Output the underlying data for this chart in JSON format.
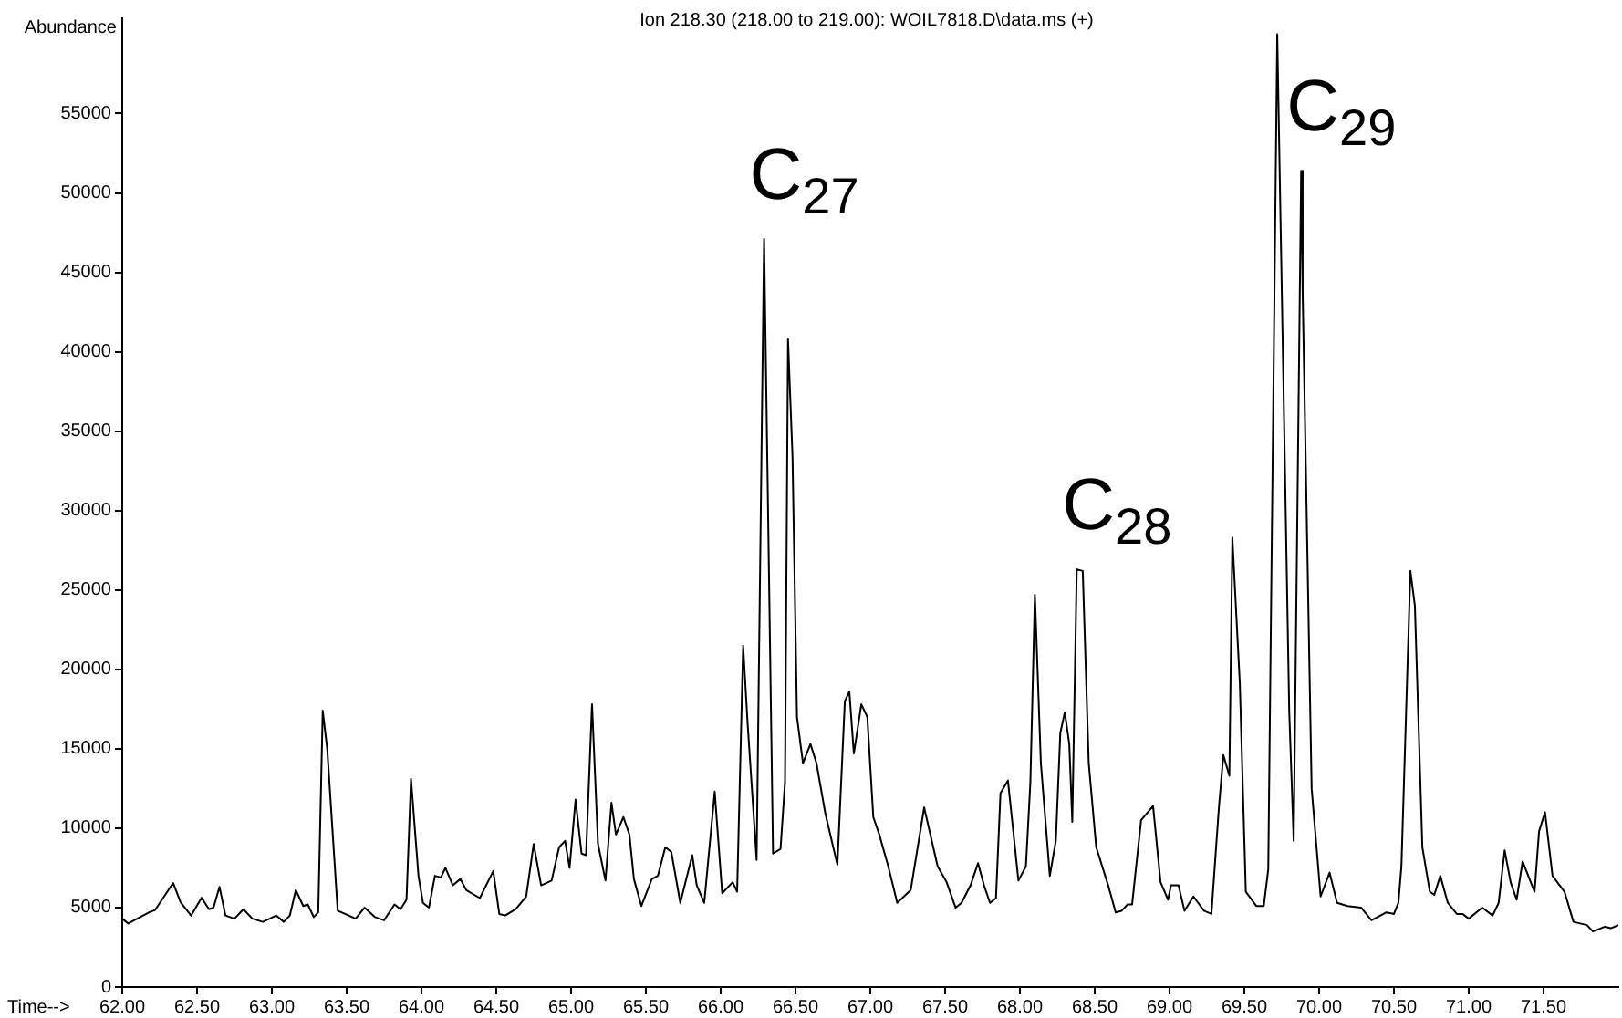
{
  "chart_data": {
    "type": "line",
    "title": "Ion 218.30 (218.00 to 219.00): WOIL7818.D\\data.ms (+)",
    "xlabel": "Time-->",
    "ylabel": "Abundance",
    "x": [
      62.0,
      62.04,
      62.18,
      62.22,
      62.34,
      62.39,
      62.46,
      62.53,
      62.58,
      62.61,
      62.65,
      62.69,
      62.75,
      62.81,
      62.87,
      62.94,
      63.03,
      63.08,
      63.12,
      63.16,
      63.21,
      63.24,
      63.28,
      63.31,
      63.34,
      63.37,
      63.44,
      63.49,
      63.56,
      63.62,
      63.69,
      63.75,
      63.82,
      63.86,
      63.9,
      63.93,
      63.98,
      64.01,
      64.05,
      64.09,
      64.13,
      64.16,
      64.21,
      64.26,
      64.3,
      64.39,
      64.48,
      64.52,
      64.56,
      64.63,
      64.7,
      64.75,
      64.8,
      64.87,
      64.92,
      64.96,
      64.99,
      65.03,
      65.07,
      65.1,
      65.14,
      65.18,
      65.23,
      65.27,
      65.3,
      65.35,
      65.39,
      65.42,
      65.47,
      65.54,
      65.58,
      65.63,
      65.67,
      65.73,
      65.81,
      65.84,
      65.89,
      65.96,
      66.01,
      66.08,
      66.11,
      66.15,
      66.18,
      66.24,
      66.29,
      66.35,
      66.4,
      66.43,
      66.45,
      66.48,
      66.51,
      66.55,
      66.6,
      66.64,
      66.7,
      66.78,
      66.83,
      66.86,
      66.89,
      66.94,
      66.98,
      67.02,
      67.06,
      67.12,
      67.18,
      67.27,
      67.36,
      67.45,
      67.51,
      67.57,
      67.61,
      67.67,
      67.72,
      67.76,
      67.8,
      67.84,
      67.87,
      67.92,
      67.99,
      68.04,
      68.07,
      68.1,
      68.14,
      68.2,
      68.24,
      68.27,
      68.3,
      68.33,
      68.35,
      68.38,
      68.42,
      68.46,
      68.51,
      68.59,
      68.64,
      68.68,
      68.72,
      68.75,
      68.81,
      68.89,
      68.94,
      68.99,
      69.01,
      69.06,
      69.1,
      69.16,
      69.23,
      69.28,
      69.33,
      69.36,
      69.4,
      69.42,
      69.47,
      69.51,
      69.58,
      69.63,
      69.66,
      69.72,
      69.77,
      69.8,
      69.83,
      69.88,
      69.89,
      69.95,
      70.01,
      70.07,
      70.12,
      70.19,
      70.28,
      70.35,
      70.45,
      70.5,
      70.53,
      70.55,
      70.61,
      70.64,
      70.69,
      70.74,
      70.77,
      70.81,
      70.86,
      70.92,
      70.96,
      71.0,
      71.09,
      71.16,
      71.2,
      71.24,
      71.28,
      71.32,
      71.36,
      71.44,
      71.47,
      71.51,
      71.56,
      71.64,
      71.7,
      71.79,
      71.83,
      71.91,
      71.95,
      72.0
    ],
    "values": [
      4300,
      4000,
      4700,
      4850,
      6550,
      5330,
      4500,
      5620,
      4900,
      5000,
      6300,
      4500,
      4300,
      4900,
      4300,
      4100,
      4500,
      4100,
      4500,
      6100,
      5100,
      5200,
      4400,
      4700,
      17400,
      15000,
      4800,
      4600,
      4300,
      5000,
      4400,
      4200,
      5200,
      4900,
      5500,
      13100,
      7000,
      5300,
      5000,
      7000,
      6900,
      7500,
      6400,
      6800,
      6100,
      5600,
      7300,
      4600,
      4500,
      4900,
      5700,
      9000,
      6400,
      6700,
      8800,
      9200,
      7500,
      11800,
      8400,
      8300,
      17800,
      9000,
      6700,
      11600,
      9600,
      10700,
      9600,
      6800,
      5100,
      6800,
      7000,
      8800,
      8500,
      5300,
      8300,
      6400,
      5300,
      12300,
      5900,
      6600,
      6000,
      21500,
      16600,
      8000,
      47100,
      8400,
      8700,
      12900,
      40800,
      33400,
      17000,
      14100,
      15300,
      14100,
      10900,
      7700,
      18000,
      18600,
      14700,
      17800,
      17000,
      10700,
      9600,
      7600,
      5300,
      6100,
      11300,
      7600,
      6600,
      5000,
      5300,
      6400,
      7800,
      6400,
      5300,
      5600,
      12200,
      13000,
      6700,
      7600,
      12900,
      24700,
      14100,
      7000,
      9200,
      16000,
      17300,
      15300,
      10400,
      26300,
      26200,
      14100,
      8800,
      6400,
      4700,
      4800,
      5200,
      5200,
      10500,
      11400,
      6600,
      5500,
      6400,
      6400,
      4800,
      5700,
      4800,
      4600,
      11300,
      14600,
      13300,
      28300,
      19100,
      6000,
      5100,
      5100,
      7400,
      60000,
      33400,
      17400,
      9200,
      51400,
      43700,
      12500,
      5700,
      7200,
      5300,
      5100,
      5000,
      4200,
      4700,
      4600,
      5300,
      7600,
      26200,
      24000,
      8800,
      6000,
      5800,
      7000,
      5300,
      4600,
      4600,
      4300,
      5000,
      4500,
      5300,
      8600,
      6600,
      5500,
      7900,
      6000,
      9800,
      11000,
      7000,
      6000,
      4100,
      3900,
      3500,
      3800,
      3700,
      3900
    ],
    "color": "#000000",
    "xlim": [
      62,
      72
    ],
    "ylim": [
      0,
      61000
    ],
    "xticks": [
      {
        "value": 62,
        "label": "62.00"
      },
      {
        "value": 62.5,
        "label": "62.50"
      },
      {
        "value": 63,
        "label": "63.00"
      },
      {
        "value": 63.5,
        "label": "63.50"
      },
      {
        "value": 64,
        "label": "64.00"
      },
      {
        "value": 64.5,
        "label": "64.50"
      },
      {
        "value": 65,
        "label": "65.00"
      },
      {
        "value": 65.5,
        "label": "65.50"
      },
      {
        "value": 66,
        "label": "66.00"
      },
      {
        "value": 66.5,
        "label": "66.50"
      },
      {
        "value": 67,
        "label": "67.00"
      },
      {
        "value": 67.5,
        "label": "67.50"
      },
      {
        "value": 68,
        "label": "68.00"
      },
      {
        "value": 68.5,
        "label": "68.50"
      },
      {
        "value": 69,
        "label": "69.00"
      },
      {
        "value": 69.5,
        "label": "69.50"
      },
      {
        "value": 70,
        "label": "70.00"
      },
      {
        "value": 70.5,
        "label": "70.50"
      },
      {
        "value": 71,
        "label": "71.00"
      },
      {
        "value": 71.5,
        "label": "71.50"
      }
    ],
    "yticks": [
      0,
      5000,
      10000,
      15000,
      20000,
      25000,
      30000,
      35000,
      40000,
      45000,
      50000,
      55000
    ],
    "annotations": [
      {
        "text": "C$_{27}$",
        "x": 66.29,
        "y": 47100
      },
      {
        "text": "C$_{28}$",
        "x": 68.38,
        "y": 26300
      },
      {
        "text": "C$_{29}$",
        "x": 69.88,
        "y": 51400
      }
    ],
    "grid": false,
    "legend": false,
    "marker": "none",
    "line_style": "solid"
  }
}
